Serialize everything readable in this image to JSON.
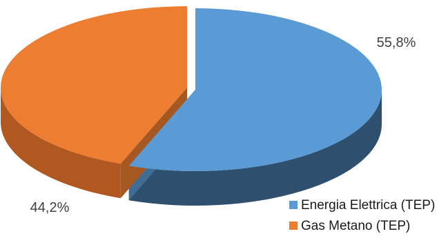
{
  "chart_data": {
    "type": "pie",
    "style": "3d-exploded",
    "categories": [
      "Energia Elettrica (TEP)",
      "Gas Metano (TEP)"
    ],
    "values": [
      55.8,
      44.2
    ],
    "data_labels": [
      "55,8%",
      "44,2%"
    ],
    "colors": [
      "#5B9BD5",
      "#ED7D31"
    ],
    "side_colors": [
      "#2E4F6E",
      "#B0581F"
    ],
    "legend": {
      "position": "bottom-right",
      "items": [
        {
          "label": "Energia Elettrica (TEP)",
          "color": "#5B9BD5"
        },
        {
          "label": "Gas Metano (TEP)",
          "color": "#ED7D31"
        }
      ]
    }
  }
}
